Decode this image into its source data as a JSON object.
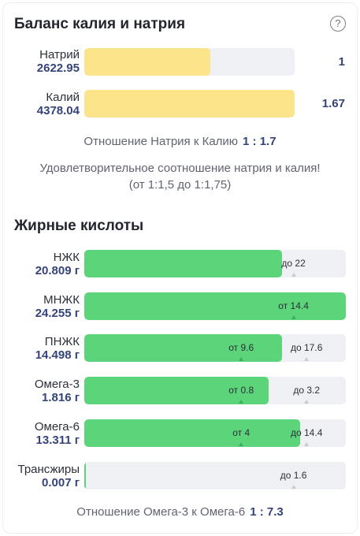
{
  "sodium_potassium": {
    "title": "Баланс калия и натрия",
    "help_icon": "?",
    "rows": [
      {
        "name": "Натрий",
        "value": "2622.95",
        "ratio_value": "1",
        "fill_fraction": 0.6
      },
      {
        "name": "Калий",
        "value": "4378.04",
        "ratio_value": "1.67",
        "fill_fraction": 1.0
      }
    ],
    "ratio_label": "Отношение Натрия к Калию",
    "ratio": "1 : 1.7",
    "message_line1": "Удовлетворительное соотношение натрия и калия!",
    "message_line2": "(от 1:1,5 до 1:1,75)",
    "bar_color": "#fbe48a"
  },
  "fatty_acids": {
    "title": "Жирные кислоты",
    "bar_color": "#5cd47a",
    "rows": [
      {
        "name": "НЖК",
        "value": "20.809 г",
        "fill_fraction": 0.757,
        "max_label": "до 22",
        "max_fraction": 0.8
      },
      {
        "name": "МНЖК",
        "value": "24.255 г",
        "fill_fraction": 1.0,
        "min_label": "от 14.4",
        "min_fraction": 0.8
      },
      {
        "name": "ПНЖК",
        "value": "14.498 г",
        "fill_fraction": 0.757,
        "min_label": "от 9.6",
        "min_fraction": 0.6,
        "max_label": "до 17.6",
        "max_fraction": 0.85
      },
      {
        "name": "Омега-3",
        "value": "1.816 г",
        "fill_fraction": 0.705,
        "min_label": "от 0.8",
        "min_fraction": 0.6,
        "max_label": "до 3.2",
        "max_fraction": 0.85
      },
      {
        "name": "Омега-6",
        "value": "13.311 г",
        "fill_fraction": 0.826,
        "min_label": "от 4",
        "min_fraction": 0.6,
        "max_label": "до 14.4",
        "max_fraction": 0.85
      },
      {
        "name": "Трансжиры",
        "value": "0.007 г",
        "fill_fraction": 0.004,
        "max_label": "до 1.6",
        "max_fraction": 0.8
      }
    ],
    "ratio_label": "Отношение Омега-3 к Омега-6",
    "ratio": "1 : 7.3"
  }
}
